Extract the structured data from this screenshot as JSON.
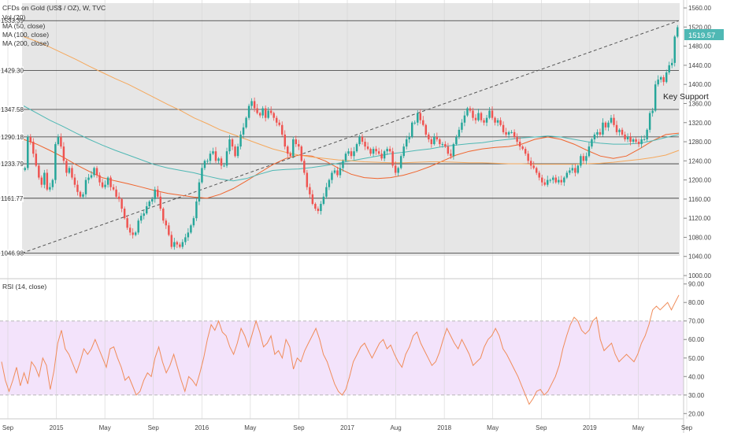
{
  "header": {
    "title": "CFDs on Gold (US$ / OZ), W, TVC",
    "legend": [
      "Vol (20)",
      "MA (50, close)",
      "MA (100, close)",
      "MA (200, close)"
    ]
  },
  "annotation": "Key Support",
  "rsi_label": "RSI (14, close)",
  "colors": {
    "up": "#26a69a",
    "down": "#ef5350",
    "panel_bg": "#e6e6e6",
    "rsi_band": "#f3e3fb",
    "rsi_line": "#f08c5a",
    "ma50": "#f0642d",
    "ma100": "#4fb8b4",
    "ma200": "#f5a85c",
    "last_price_bg": "#4fb8b4"
  },
  "chart_data": [
    {
      "type": "candlestick",
      "timeframe": "W",
      "x_ticks": [
        "Sep",
        "2015",
        "May",
        "Sep",
        "2016",
        "May",
        "Sep",
        "2017",
        "Aug",
        "2018",
        "May",
        "Sep",
        "2019",
        "May",
        "Sep"
      ],
      "y_ticks": [
        "1560.00",
        "1520.00",
        "1480.00",
        "1440.00",
        "1400.00",
        "1360.00",
        "1320.00",
        "1280.00",
        "1240.00",
        "1200.00",
        "1160.00",
        "1120.00",
        "1080.00",
        "1040.00",
        "1000.00"
      ],
      "ylim": [
        1000,
        1570
      ],
      "last_price": "1519.57",
      "horizontal_levels": [
        {
          "label": "1533.39",
          "value": 1533.39
        },
        {
          "label": "1429.30",
          "value": 1429.3
        },
        {
          "label": "1347.58",
          "value": 1347.58
        },
        {
          "label": "1290.18",
          "value": 1290.18
        },
        {
          "label": "1233.79",
          "value": 1233.79
        },
        {
          "label": "1161.77",
          "value": 1161.77
        },
        {
          "label": "1046.98",
          "value": 1046.98
        }
      ],
      "trendline": {
        "from": 1046.98,
        "to": 1533.39
      },
      "closes": [
        1225,
        1290,
        1280,
        1255,
        1230,
        1205,
        1190,
        1215,
        1180,
        1185,
        1200,
        1275,
        1290,
        1270,
        1240,
        1215,
        1225,
        1205,
        1190,
        1175,
        1165,
        1170,
        1200,
        1205,
        1210,
        1225,
        1210,
        1195,
        1185,
        1190,
        1205,
        1185,
        1180,
        1165,
        1160,
        1140,
        1120,
        1100,
        1090,
        1085,
        1090,
        1115,
        1125,
        1130,
        1145,
        1155,
        1160,
        1180,
        1165,
        1140,
        1115,
        1105,
        1085,
        1060,
        1070,
        1065,
        1060,
        1070,
        1080,
        1090,
        1105,
        1120,
        1155,
        1195,
        1225,
        1240,
        1240,
        1255,
        1260,
        1240,
        1245,
        1230,
        1230,
        1260,
        1285,
        1270,
        1250,
        1270,
        1295,
        1310,
        1330,
        1355,
        1365,
        1350,
        1340,
        1335,
        1350,
        1330,
        1345,
        1340,
        1330,
        1320,
        1315,
        1295,
        1270,
        1255,
        1250,
        1285,
        1275,
        1270,
        1240,
        1215,
        1185,
        1170,
        1150,
        1140,
        1135,
        1150,
        1165,
        1185,
        1200,
        1215,
        1220,
        1210,
        1225,
        1240,
        1255,
        1260,
        1250,
        1260,
        1275,
        1290,
        1280,
        1270,
        1265,
        1255,
        1265,
        1260,
        1255,
        1245,
        1260,
        1265,
        1260,
        1230,
        1215,
        1225,
        1250,
        1270,
        1285,
        1290,
        1320,
        1320,
        1340,
        1325,
        1315,
        1295,
        1285,
        1275,
        1290,
        1285,
        1275,
        1275,
        1270,
        1255,
        1250,
        1275,
        1290,
        1305,
        1320,
        1335,
        1350,
        1345,
        1330,
        1325,
        1340,
        1325,
        1320,
        1330,
        1345,
        1330,
        1320,
        1325,
        1315,
        1300,
        1295,
        1300,
        1300,
        1290,
        1280,
        1270,
        1265,
        1255,
        1240,
        1230,
        1225,
        1215,
        1205,
        1195,
        1190,
        1200,
        1200,
        1205,
        1195,
        1200,
        1195,
        1205,
        1215,
        1220,
        1225,
        1215,
        1230,
        1250,
        1240,
        1250,
        1270,
        1285,
        1295,
        1300,
        1295,
        1320,
        1310,
        1320,
        1330,
        1315,
        1300,
        1305,
        1295,
        1285,
        1290,
        1280,
        1285,
        1280,
        1275,
        1285,
        1285,
        1305,
        1340,
        1345,
        1400,
        1410,
        1415,
        1405,
        1425,
        1440,
        1445,
        1500,
        1519.57
      ],
      "moving_averages": [
        {
          "name": "MA (50, close)",
          "values": [
            1285,
            1275,
            1262,
            1248,
            1232,
            1218,
            1205,
            1198,
            1192,
            1185,
            1178,
            1172,
            1168,
            1164,
            1162,
            1170,
            1182,
            1198,
            1215,
            1232,
            1245,
            1252,
            1250,
            1240,
            1225,
            1212,
            1205,
            1203,
            1205,
            1210,
            1218,
            1228,
            1240,
            1252,
            1260,
            1265,
            1268,
            1270,
            1275,
            1285,
            1290,
            1285,
            1275,
            1262,
            1250,
            1245,
            1250,
            1265,
            1282,
            1295,
            1298
          ]
        },
        {
          "name": "MA (100, close)",
          "values": [
            1355,
            1340,
            1325,
            1312,
            1298,
            1285,
            1273,
            1262,
            1252,
            1242,
            1232,
            1225,
            1220,
            1215,
            1208,
            1202,
            1198,
            1203,
            1212,
            1220,
            1222,
            1223,
            1226,
            1230,
            1235,
            1240,
            1245,
            1250,
            1255,
            1258,
            1262,
            1265,
            1270,
            1273,
            1276,
            1278,
            1282,
            1285,
            1288,
            1290,
            1292,
            1290,
            1285,
            1280,
            1277,
            1275,
            1275,
            1277,
            1282,
            1289,
            1295
          ]
        },
        {
          "name": "MA (200, close)",
          "values": [
            1500,
            1490,
            1478,
            1465,
            1452,
            1438,
            1425,
            1412,
            1400,
            1386,
            1372,
            1358,
            1345,
            1330,
            1318,
            1305,
            1295,
            1285,
            1275,
            1265,
            1258,
            1252,
            1248,
            1245,
            1242,
            1240,
            1238,
            1237,
            1236,
            1236,
            1237,
            1238,
            1238,
            1237,
            1236,
            1236,
            1235,
            1234,
            1234,
            1233,
            1233,
            1233,
            1233,
            1234,
            1235,
            1237,
            1240,
            1243,
            1247,
            1252,
            1262
          ]
        }
      ]
    },
    {
      "type": "line",
      "name": "RSI (14, close)",
      "y_ticks": [
        "90.00",
        "80.00",
        "70.00",
        "60.00",
        "50.00",
        "40.00",
        "30.00",
        "20.00"
      ],
      "ylim": [
        18,
        92
      ],
      "bands": [
        30,
        70
      ],
      "values": [
        48,
        38,
        32,
        38,
        45,
        35,
        42,
        36,
        48,
        45,
        40,
        50,
        46,
        33,
        43,
        58,
        65,
        55,
        52,
        47,
        42,
        48,
        55,
        52,
        55,
        60,
        55,
        50,
        45,
        55,
        56,
        50,
        45,
        38,
        40,
        35,
        30,
        32,
        38,
        42,
        40,
        50,
        56,
        48,
        42,
        46,
        52,
        45,
        38,
        32,
        40,
        38,
        35,
        42,
        50,
        60,
        68,
        65,
        70,
        64,
        62,
        56,
        52,
        58,
        66,
        62,
        56,
        63,
        70,
        64,
        56,
        58,
        62,
        52,
        54,
        50,
        60,
        56,
        44,
        50,
        48,
        54,
        58,
        62,
        66,
        60,
        52,
        48,
        42,
        36,
        32,
        30,
        33,
        40,
        48,
        52,
        56,
        58,
        54,
        50,
        54,
        58,
        60,
        55,
        57,
        52,
        48,
        45,
        52,
        56,
        62,
        64,
        58,
        54,
        50,
        46,
        48,
        53,
        60,
        66,
        62,
        58,
        55,
        60,
        56,
        52,
        46,
        48,
        50,
        56,
        60,
        62,
        66,
        62,
        55,
        52,
        48,
        44,
        40,
        35,
        30,
        25,
        28,
        32,
        33,
        30,
        32,
        36,
        40,
        46,
        55,
        62,
        68,
        72,
        70,
        65,
        63,
        65,
        70,
        72,
        60,
        54,
        56,
        58,
        52,
        48,
        50,
        52,
        50,
        48,
        52,
        58,
        62,
        68,
        76,
        78,
        76,
        78,
        80,
        76,
        80,
        84
      ]
    }
  ]
}
